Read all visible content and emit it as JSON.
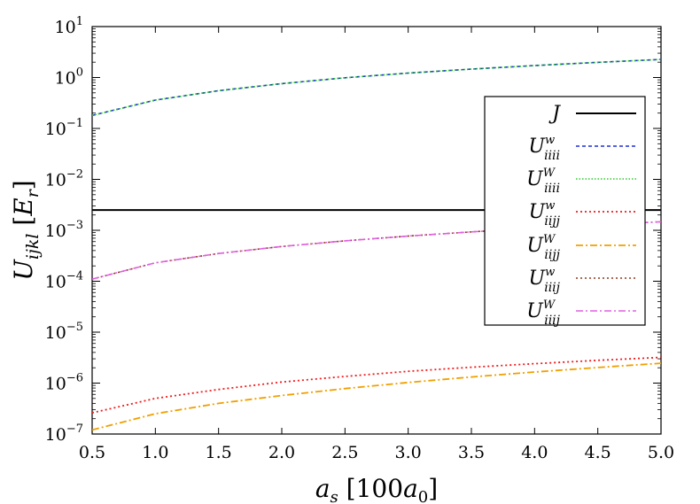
{
  "chart_data": {
    "type": "line",
    "title": "",
    "xlabel": "a_s [100a_0]",
    "ylabel": "U_ijkl [E_r]",
    "xlim": [
      0.5,
      5.0
    ],
    "ylim": [
      1e-07,
      10
    ],
    "yscale": "log",
    "grid": false,
    "legend_position": "right",
    "x_ticks": [
      "0.5",
      "1.0",
      "1.5",
      "2.0",
      "2.5",
      "3.0",
      "3.5",
      "4.0",
      "4.5",
      "5.0"
    ],
    "y_ticks": [
      {
        "base": "10",
        "exp": "1",
        "value": 10
      },
      {
        "base": "10",
        "exp": "0",
        "value": 1
      },
      {
        "base": "10",
        "exp": "−1",
        "value": 0.1
      },
      {
        "base": "10",
        "exp": "−2",
        "value": 0.01
      },
      {
        "base": "10",
        "exp": "−3",
        "value": 0.001
      },
      {
        "base": "10",
        "exp": "−4",
        "value": 0.0001
      },
      {
        "base": "10",
        "exp": "−5",
        "value": 1e-05
      },
      {
        "base": "10",
        "exp": "−6",
        "value": 1e-06
      },
      {
        "base": "10",
        "exp": "−7",
        "value": 1e-07
      }
    ],
    "x": [
      0.5,
      1.0,
      1.5,
      2.0,
      2.5,
      3.0,
      3.5,
      4.0,
      4.5,
      5.0
    ],
    "series": [
      {
        "key": "J",
        "name": "J",
        "sub": "",
        "sup": "",
        "color": "#000000",
        "dash": "",
        "width": 2.0,
        "values": [
          0.0025,
          0.0025,
          0.0025,
          0.0025,
          0.0025,
          0.0025,
          0.0025,
          0.0025,
          0.0025,
          0.0025
        ]
      },
      {
        "key": "Uw_iiii",
        "name": "U",
        "sub": "iiii",
        "sup": "w",
        "color": "#1f2fd6",
        "dash": "4,3",
        "width": 1.6,
        "values": [
          0.18,
          0.36,
          0.55,
          0.76,
          0.99,
          1.22,
          1.46,
          1.72,
          1.98,
          2.26
        ]
      },
      {
        "key": "UW_iiii",
        "name": "U",
        "sub": "iiii",
        "sup": "W",
        "color": "#2ec82e",
        "dash": "1.5,2",
        "width": 1.6,
        "values": [
          0.18,
          0.36,
          0.55,
          0.76,
          0.99,
          1.22,
          1.46,
          1.72,
          1.98,
          2.26
        ]
      },
      {
        "key": "Uw_iijj",
        "name": "U",
        "sub": "iijj",
        "sup": "w",
        "color": "#ee1c1c",
        "dash": "2,3",
        "width": 1.8,
        "values": [
          2.6e-07,
          5e-07,
          7.5e-07,
          1.05e-06,
          1.35e-06,
          1.7e-06,
          2.05e-06,
          2.4e-06,
          2.8e-06,
          3.2e-06
        ]
      },
      {
        "key": "UW_iijj",
        "name": "U",
        "sub": "iijj",
        "sup": "W",
        "color": "#f0a000",
        "dash": "8,3,2,3",
        "width": 1.8,
        "values": [
          1.2e-07,
          2.5e-07,
          4e-07,
          5.7e-07,
          7.8e-07,
          1.03e-06,
          1.32e-06,
          1.65e-06,
          2.02e-06,
          2.45e-06
        ]
      },
      {
        "key": "Uw_iiij",
        "name": "U",
        "sub": "iiij",
        "sup": "w",
        "color": "#8b3a1a",
        "dash": "2,3",
        "width": 1.6,
        "values": [
          0.00011,
          0.00023,
          0.00035,
          0.00048,
          0.00062,
          0.00077,
          0.00093,
          0.0011,
          0.00128,
          0.00147
        ]
      },
      {
        "key": "UW_iiij",
        "name": "U",
        "sub": "iiij",
        "sup": "W",
        "color": "#e060e0",
        "dash": "8,3,2,3",
        "width": 1.6,
        "values": [
          0.00011,
          0.00023,
          0.00035,
          0.00048,
          0.00062,
          0.00077,
          0.00093,
          0.0011,
          0.00128,
          0.00147
        ]
      }
    ]
  }
}
